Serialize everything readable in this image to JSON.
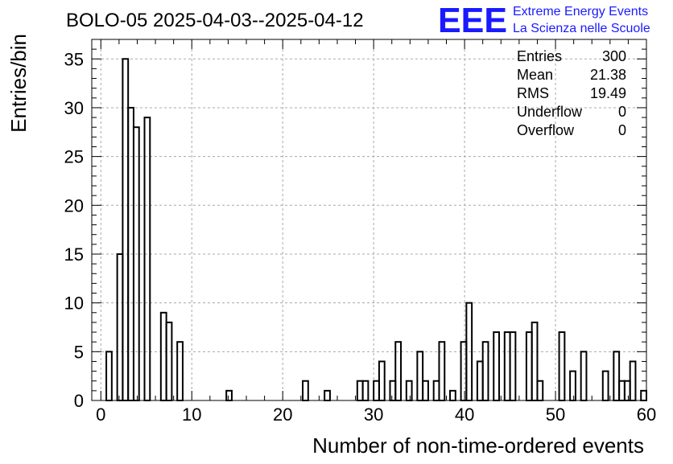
{
  "chart_data": {
    "type": "bar",
    "subtype": "histogram",
    "title": "BOLO-05 2025-04-03--2025-04-12",
    "xlabel": "Number of non-time-ordered events",
    "ylabel": "Entries/bin",
    "xlim": [
      -1,
      60
    ],
    "ylim": [
      0,
      37
    ],
    "xticks": [
      0,
      10,
      20,
      30,
      40,
      50,
      60
    ],
    "yticks": [
      0,
      5,
      10,
      15,
      20,
      25,
      30,
      35
    ],
    "bin_width": 0.6,
    "bin_start": 0,
    "grid": true,
    "line_color": "#000000",
    "bin_edges_start": 0,
    "values": [
      0,
      5,
      0,
      15,
      35,
      30,
      28,
      0,
      29,
      0,
      0,
      9,
      8,
      0,
      6,
      0,
      0,
      0,
      0,
      0,
      0,
      0,
      0,
      1,
      0,
      0,
      0,
      0,
      0,
      0,
      0,
      0,
      0,
      0,
      0,
      0,
      0,
      2,
      0,
      0,
      0,
      1,
      0,
      0,
      0,
      0,
      0,
      2,
      2,
      0,
      2,
      4,
      0,
      2,
      6,
      0,
      2,
      0,
      5,
      2,
      0,
      2,
      6,
      0,
      1,
      0,
      6,
      10,
      0,
      4,
      6,
      0,
      7,
      0,
      7,
      7,
      0,
      0,
      7,
      8,
      2,
      0,
      0,
      0,
      7,
      0,
      3,
      0,
      5,
      0,
      0,
      0,
      3,
      0,
      5,
      2,
      2,
      4,
      0,
      1
    ]
  },
  "stats_box": {
    "rows": [
      {
        "label": "Entries",
        "value": "300"
      },
      {
        "label": "Mean",
        "value": "21.38"
      },
      {
        "label": "RMS",
        "value": "19.49"
      },
      {
        "label": "Underflow",
        "value": "0"
      },
      {
        "label": "Overflow",
        "value": "0"
      }
    ]
  },
  "logo": {
    "mark": "EEE",
    "line1": "Extreme Energy Events",
    "line2": "La Scienza nelle Scuole",
    "color": "#1a1aff"
  }
}
